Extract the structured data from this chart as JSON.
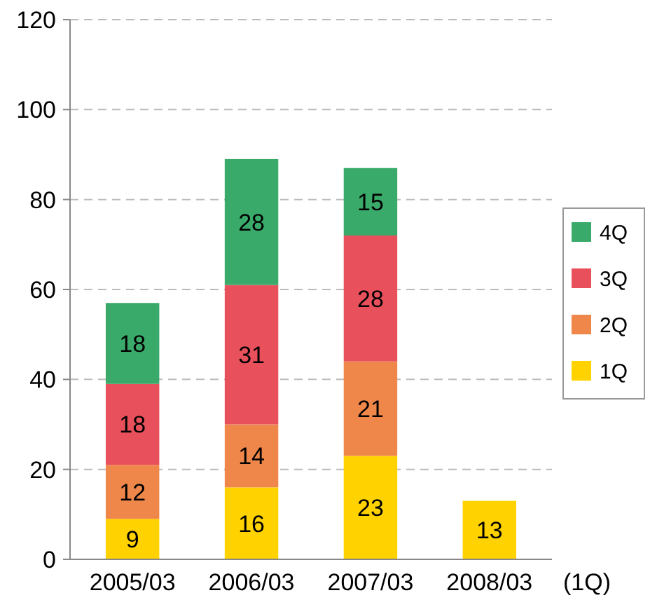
{
  "chart_data": {
    "type": "bar",
    "stacked": true,
    "xlabel": "(1Q)",
    "categories": [
      "2005/03",
      "2006/03",
      "2007/03",
      "2008/03"
    ],
    "series": [
      {
        "name": "1Q",
        "color": "#ffd200",
        "values": [
          9,
          16,
          23,
          13
        ]
      },
      {
        "name": "2Q",
        "color": "#f0874a",
        "values": [
          12,
          14,
          21,
          null
        ]
      },
      {
        "name": "3Q",
        "color": "#e8505b",
        "values": [
          18,
          31,
          28,
          null
        ]
      },
      {
        "name": "4Q",
        "color": "#3aaa6a",
        "values": [
          18,
          28,
          15,
          null
        ]
      }
    ],
    "ylim": [
      0,
      120
    ],
    "yticks": [
      0,
      20,
      40,
      60,
      80,
      100,
      120
    ],
    "grid": "y",
    "legend": "right",
    "data_labels": true
  }
}
